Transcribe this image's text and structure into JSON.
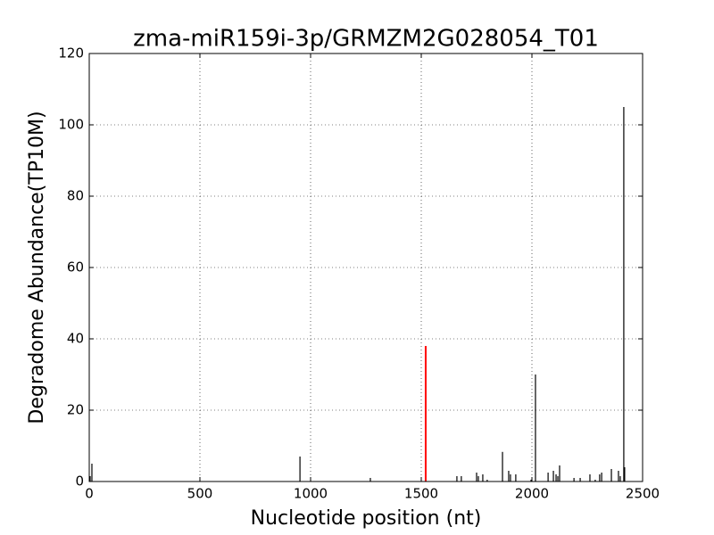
{
  "chart_data": {
    "type": "stem",
    "title": "zma-miR159i-3p/GRMZM2G028054_T01",
    "x_label": "Nucleotide position (nt)",
    "y_label": "Degradome Abundance(TP10M)",
    "xlim": [
      0,
      2500
    ],
    "ylim": [
      0,
      120
    ],
    "xticks": [
      0,
      500,
      1000,
      1500,
      2000,
      2500
    ],
    "yticks": [
      0,
      20,
      40,
      60,
      80,
      100,
      120
    ],
    "grid": true,
    "series": [
      {
        "color": "#000000",
        "x": [
          4,
          12,
          952,
          1270,
          1661,
          1681,
          1750,
          1758,
          1778,
          1798,
          1867,
          1895,
          1903,
          1927,
          1996,
          2016,
          2073,
          2097,
          2109,
          2117,
          2125,
          2190,
          2218,
          2262,
          2286,
          2306,
          2315,
          2359,
          2391,
          2399,
          2415,
          2419
        ],
        "values": [
          1.5,
          5,
          7,
          1,
          1.5,
          1.5,
          2.5,
          1.5,
          2,
          0.5,
          8.3,
          3,
          2,
          2,
          0.5,
          30,
          2.5,
          3,
          2,
          1.5,
          4.5,
          1,
          1,
          2,
          0.5,
          2,
          2.5,
          3.5,
          3,
          1.5,
          105,
          4
        ]
      },
      {
        "color": "#ff0000",
        "x": [
          1520
        ],
        "values": [
          38
        ]
      }
    ]
  }
}
